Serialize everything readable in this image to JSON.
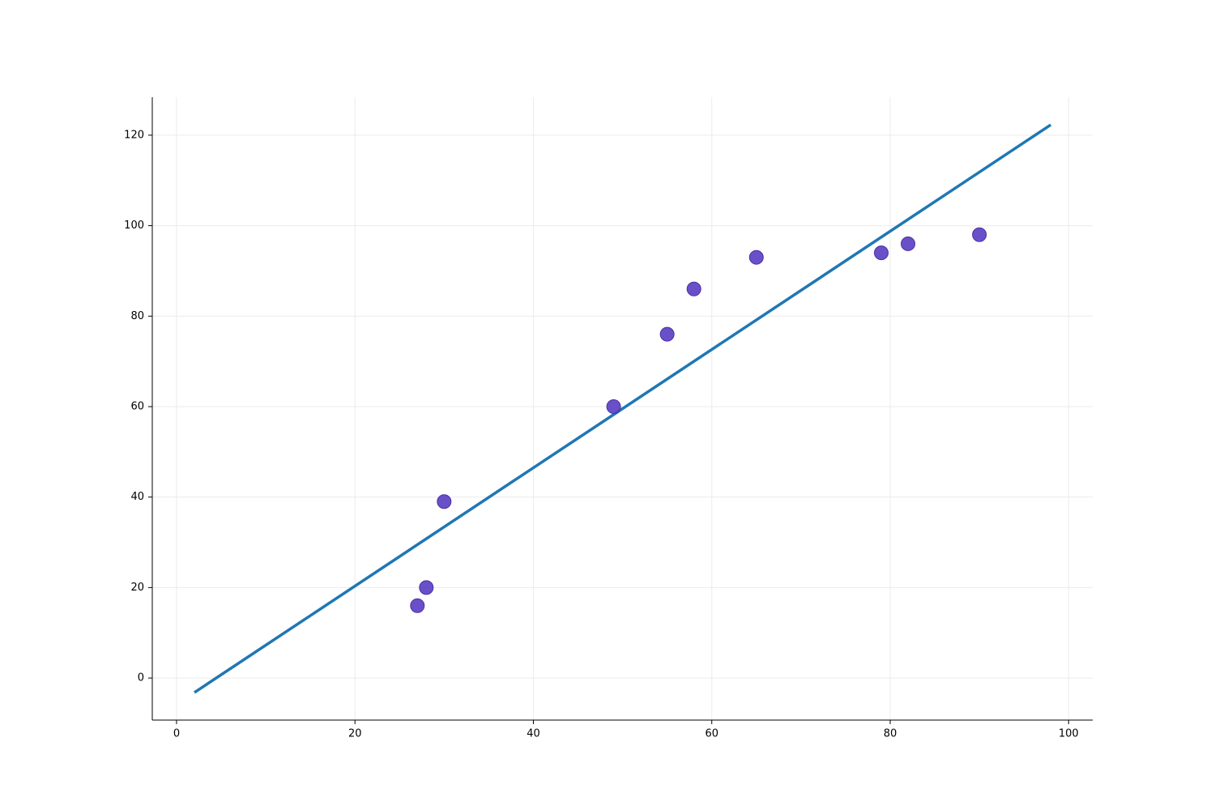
{
  "chart_data": {
    "type": "scatter",
    "series": [
      {
        "type": "scatter",
        "color": "#5a3dc2",
        "x": [
          27,
          28,
          30,
          49,
          55,
          58,
          65,
          79,
          82,
          90
        ],
        "values": [
          16,
          20,
          39,
          60,
          76,
          86,
          93,
          94,
          96,
          98
        ]
      },
      {
        "type": "line",
        "color": "#1f77b4",
        "x": [
          2,
          98
        ],
        "values": [
          -3.2,
          122.3
        ]
      }
    ],
    "xlim": [
      -2.72,
      102.7
    ],
    "ylim": [
      -9.3,
      128.4
    ],
    "xticks": [
      0,
      20,
      40,
      60,
      80,
      100
    ],
    "yticks": [
      0,
      20,
      40,
      60,
      80,
      100,
      120
    ],
    "grid": true
  }
}
